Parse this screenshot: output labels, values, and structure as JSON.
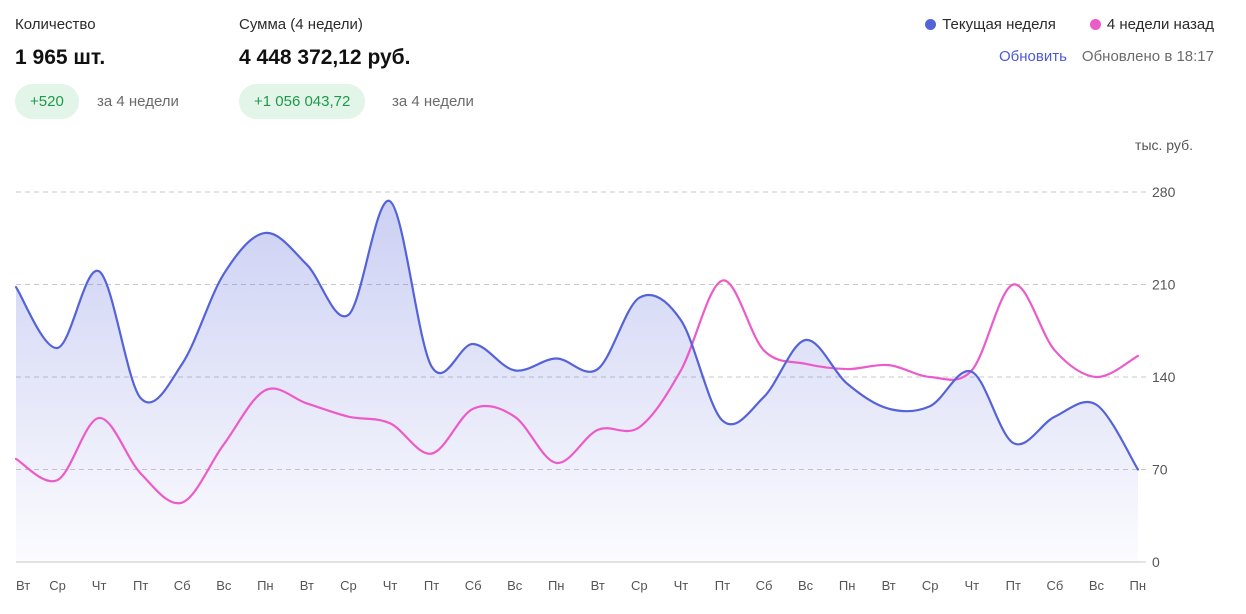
{
  "stats": {
    "quantity": {
      "label": "Количество",
      "value": "1 965 шт.",
      "delta": "+520",
      "period": "за 4 недели"
    },
    "sum": {
      "label": "Сумма (4 недели)",
      "value": "4 448 372,12 руб.",
      "delta": "+1 056 043,72",
      "period": "за 4 недели"
    }
  },
  "legend": {
    "current": {
      "label": "Текущая неделя",
      "color": "#5563d8"
    },
    "previous": {
      "label": "4 недели назад",
      "color": "#ec5bc9"
    }
  },
  "refresh": {
    "label": "Обновить",
    "updated": "Обновлено в 18:17"
  },
  "chart_data": {
    "type": "area",
    "unit_label": "тыс. руб.",
    "ylim": [
      0,
      280
    ],
    "yticks": [
      0,
      70,
      140,
      210,
      280
    ],
    "x": [
      "Вт",
      "Ср",
      "Чт",
      "Пт",
      "Сб",
      "Вс",
      "Пн",
      "Вт",
      "Ср",
      "Чт",
      "Пт",
      "Сб",
      "Вс",
      "Пн",
      "Вт",
      "Ср",
      "Чт",
      "Пт",
      "Сб",
      "Вс",
      "Пн",
      "Вт",
      "Ср",
      "Чт",
      "Пт",
      "Сб",
      "Вс",
      "Пн"
    ],
    "series": [
      {
        "name": "Текущая неделя",
        "color": "#5563d8",
        "fill": true,
        "values": [
          208,
          162,
          220,
          124,
          150,
          218,
          249,
          225,
          187,
          273,
          148,
          165,
          145,
          154,
          146,
          200,
          183,
          107,
          125,
          168,
          135,
          116,
          118,
          144,
          90,
          110,
          119,
          70
        ]
      },
      {
        "name": "4 недели назад",
        "color": "#ec5bc9",
        "fill": false,
        "values": [
          78,
          62,
          109,
          67,
          45,
          89,
          130,
          120,
          110,
          105,
          82,
          116,
          110,
          75,
          100,
          102,
          145,
          213,
          160,
          150,
          146,
          149,
          140,
          145,
          210,
          160,
          140,
          156
        ]
      }
    ]
  }
}
